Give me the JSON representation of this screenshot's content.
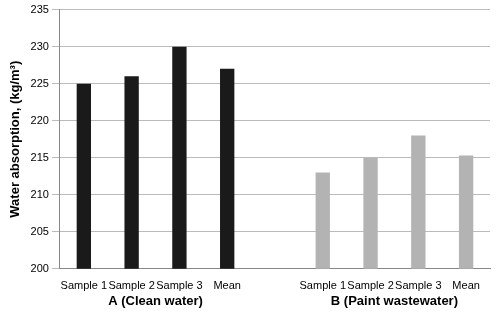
{
  "chart_data": {
    "type": "bar",
    "y_label": "Water absorption, (kg/m³)",
    "categories": [
      "Sample 1",
      "Sample 2",
      "Sample 3",
      "Mean"
    ],
    "series": [
      {
        "name": "A (Clean water)",
        "color": "#1a1a1a",
        "values": [
          225,
          226,
          230,
          227
        ]
      },
      {
        "name": "B (Paint wastewater)",
        "color": "#b3b3b3",
        "values": [
          213,
          215,
          218,
          215.3
        ]
      }
    ],
    "ylim": [
      200,
      235
    ],
    "yticks": [
      200,
      205,
      210,
      215,
      220,
      225,
      230,
      235
    ],
    "grid": true
  }
}
